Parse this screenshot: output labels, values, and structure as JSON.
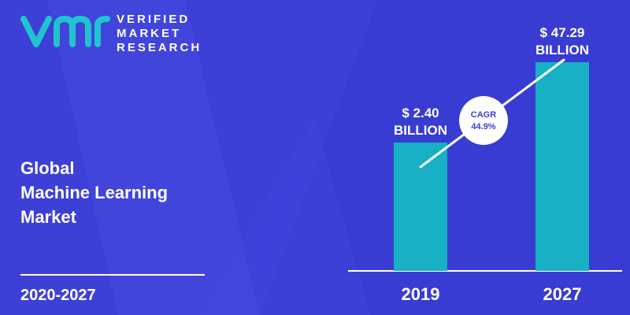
{
  "logo": {
    "line1": "VERIFIED",
    "line2": "MARKET",
    "line3": "RESEARCH"
  },
  "title": {
    "line1": "Global",
    "line2": "Machine Learning",
    "line3": "Market"
  },
  "period": "2020-2027",
  "colors": {
    "background": "#3d40d6",
    "bar": "#17b0c4",
    "text": "#ffffff",
    "accent_text": "#3d40d6"
  },
  "chart_data": {
    "type": "bar",
    "categories": [
      "2019",
      "2027"
    ],
    "values": [
      2.4,
      47.29
    ],
    "value_labels": [
      [
        "$ 2.40",
        "BILLION"
      ],
      [
        "$ 47.29",
        "BILLION"
      ]
    ],
    "annotation": {
      "line1": "CAGR",
      "line2": "44.9%"
    }
  }
}
